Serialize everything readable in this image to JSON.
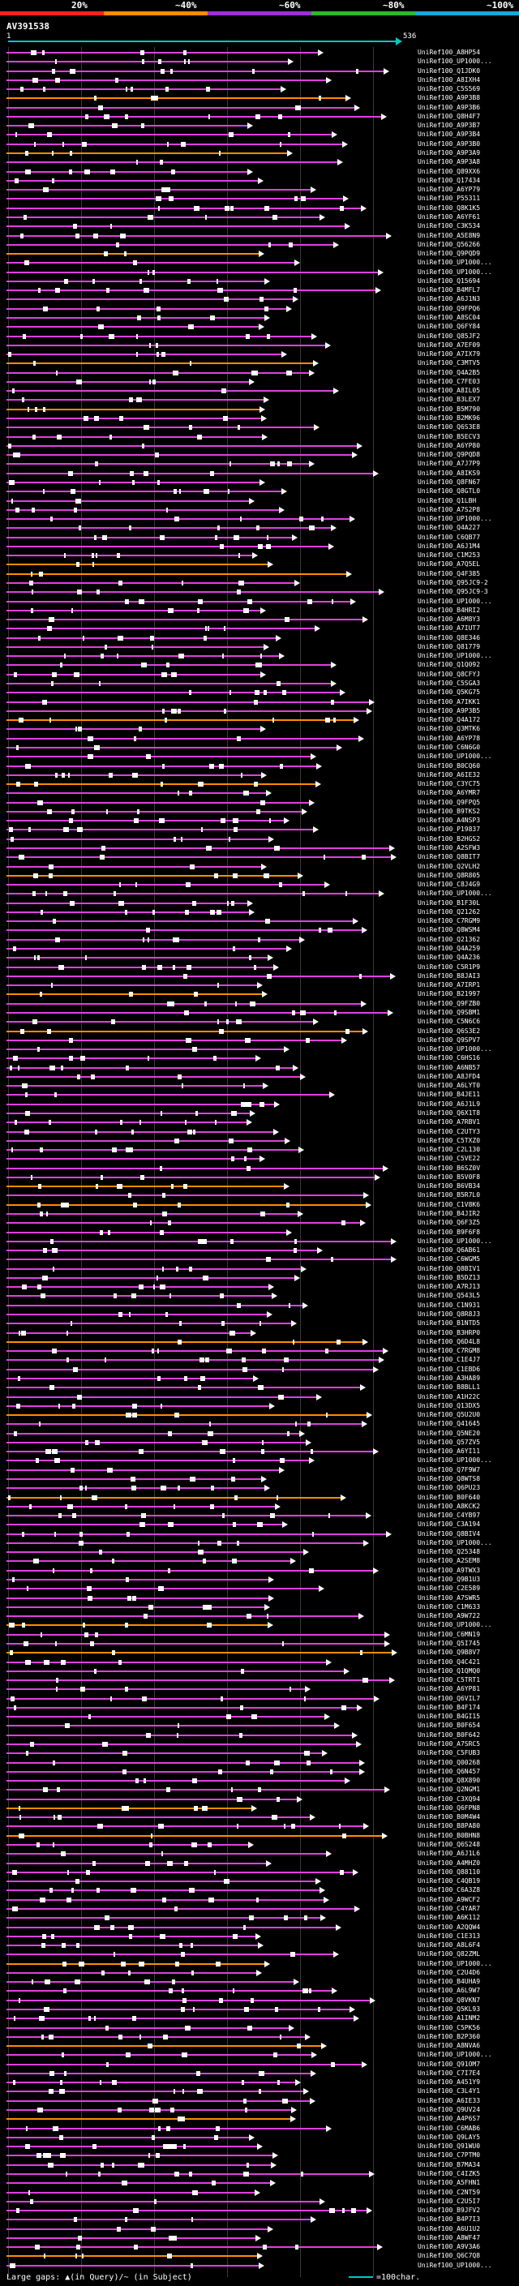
{
  "scale": {
    "labels": [
      "20%",
      "~40%",
      "~60%",
      "~80%",
      "~100%"
    ],
    "colors": [
      "#ff2020",
      "#ff8c00",
      "#9b30d8",
      "#2db82d",
      "#1aa7d9"
    ]
  },
  "query": {
    "name": "AV391538",
    "start": "1",
    "end": "536",
    "color": "#00c8c8"
  },
  "line_colors": {
    "magenta": "#e040e0",
    "orange": "#ff8c00"
  },
  "hits": [
    "UniRef100_A8HP54",
    "UniRef100_UP1000...",
    "UniRef100_Q1JDK0",
    "UniRef100_A8IXH4",
    "UniRef100_C5S569",
    "UniRef100_A9P3B8",
    "UniRef100_A9P3B6",
    "UniRef100_Q8H4F7",
    "UniRef100_A9P3B7",
    "UniRef100_A9P3B4",
    "UniRef100_A9P3B0",
    "UniRef100_A9P3A9",
    "UniRef100_A9P3A8",
    "UniRef100_Q89XX6",
    "UniRef100_Q17434",
    "UniRef100_A6YP79",
    "UniRef100_P55311",
    "UniRef100_Q8K1K5",
    "UniRef100_A6YF61",
    "UniRef100_C3K534",
    "UniRef100_A5E8N9",
    "UniRef100_Q56266",
    "UniRef100_Q9PQD9",
    "UniRef100_UP1000...",
    "UniRef100_UP1000...",
    "UniRef100_Q15694",
    "UniRef100_B4MFL7",
    "UniRef100_A6J1N3",
    "UniRef100_Q9FPQ6",
    "UniRef100_A8SC04",
    "UniRef100_Q6FY84",
    "UniRef100_Q85JF2",
    "UniRef100_A7EF09",
    "UniRef100_A7IX79",
    "UniRef100_C3MTV5",
    "UniRef100_Q4A2B5",
    "UniRef100_C7FE03",
    "UniRef100_A8IL05",
    "UniRef100_B3LEX7",
    "UniRef100_B5M790",
    "UniRef100_B2MK96",
    "UniRef100_Q6S3E8",
    "UniRef100_B5ECV3",
    "UniRef100_A6YP80",
    "UniRef100_Q9PQD8",
    "UniRef100_A7J7P9",
    "UniRef100_A8IKS9",
    "UniRef100_Q8FN67",
    "UniRef100_Q8GTL0",
    "UniRef100_Q1LBH",
    "UniRef100_A7S2P8",
    "UniRef100_UP1000...",
    "UniRef100_Q4A227",
    "UniRef100_C6QB77",
    "UniRef100_A6J1M4",
    "UniRef100_C1M253",
    "UniRef100_A7Q5EL",
    "UniRef100_Q4F385",
    "UniRef100_Q95JC9-2",
    "UniRef100_Q95JC9-3",
    "UniRef100_UP1000...",
    "UniRef100_B4HRI2",
    "UniRef100_A6M8Y3",
    "UniRef100_A7IUT7",
    "UniRef100_Q8E346",
    "UniRef100_Q81779",
    "UniRef100_UP1000...",
    "UniRef100_Q1Q092",
    "UniRef100_Q8CFYJ",
    "UniRef100_C5SGA3",
    "UniRef100_Q5KG75",
    "UniRef100_A7IKK1",
    "UniRef100_A9P3B5",
    "UniRef100_Q4A172",
    "UniRef100_Q3MTK6",
    "UniRef100_A6YP78",
    "UniRef100_C6N6G0",
    "UniRef100_UP1000...",
    "UniRef100_B0CQ60",
    "UniRef100_A6IE32",
    "UniRef100_C3YC75",
    "UniRef100_A6YMR7",
    "UniRef100_Q9FPQ5",
    "UniRef100_B9TKS2",
    "UniRef100_A4NSP3",
    "UniRef100_P19837",
    "UniRef100_B2HGS2",
    "UniRef100_A2SFW3",
    "UniRef100_Q8BIT7",
    "UniRef100_Q2VLH2",
    "UniRef100_Q8R805",
    "UniRef100_C8J4G9",
    "UniRef100_UP1000...",
    "UniRef100_B1F30L",
    "UniRef100_Q21262",
    "UniRef100_C7RGM9",
    "UniRef100_Q8WSM4",
    "UniRef100_Q21362",
    "UniRef100_Q4A259",
    "UniRef100_Q4A236",
    "UniRef100_C5R1P9",
    "UniRef100_B8JAI3",
    "UniRef100_A7IRP1",
    "UniRef100_B21997",
    "UniRef100_Q9FZB0",
    "UniRef100_Q9SBM1",
    "UniRef100_C5N6C6",
    "UniRef100_Q6S3E2",
    "UniRef100_Q9SPV7",
    "UniRef100_UP1000...",
    "UniRef100_C6HS16",
    "UniRef100_A6NB57",
    "UniRef100_A8JFD4",
    "UniRef100_A6LYT0",
    "UniRef100_B4JE11",
    "UniRef100_A6J1L9",
    "UniRef100_Q6X1T8",
    "UniRef100_A7RBV1",
    "UniRef100_C2UTY3",
    "UniRef100_C5TXZ0",
    "UniRef100_C2L130",
    "UniRef100_C5VE22",
    "UniRef100_B6SZ0V",
    "UniRef100_B5V0F8",
    "UniRef100_B6VB34",
    "UniRef100_B5R7L0",
    "UniRef100_C1V8K6",
    "UniRef100_B4JIR2",
    "UniRef100_Q6F3Z5",
    "UniRef100_B9F6F8",
    "UniRef100_UP1000...",
    "UniRef100_Q6AB61",
    "UniRef100_C6WGM5",
    "UniRef100_Q8BIV1",
    "UniRef100_B5DZ13",
    "UniRef100_A7RJ13",
    "UniRef100_Q543L5",
    "UniRef100_C1N931",
    "UniRef100_Q8R8J3",
    "UniRef100_B1NTD5",
    "UniRef100_B3HRP0",
    "UniRef100_Q6D4L8",
    "UniRef100_C7RGM8",
    "UniRef100_C1E4J7",
    "UniRef100_C1EBD6",
    "UniRef100_A3HA89",
    "UniRef100_B8BLL1",
    "UniRef100_A1H22C",
    "UniRef100_Q13DX5",
    "UniRef100_Q5U2U0",
    "UniRef100_Q41645",
    "UniRef100_Q5NE20",
    "UniRef100_Q57ZV5",
    "UniRef100_A6YI11",
    "UniRef100_UP1000...",
    "UniRef100_Q7F9W7",
    "UniRef100_Q8WTS8",
    "UniRef100_Q6PU23",
    "UniRef100_B0F640",
    "UniRef100_A8KCK2",
    "UniRef100_C4YB97",
    "UniRef100_C3A194",
    "UniRef100_Q8BIV4",
    "UniRef100_UP1000...",
    "UniRef100_Q25348",
    "UniRef100_A2SEM8",
    "UniRef100_A9TWX3",
    "UniRef100_Q9B1U3",
    "UniRef100_C2E589",
    "UniRef100_A7SWR5",
    "UniRef100_C1M633",
    "UniRef100_A9W722",
    "UniRef100_UP1000...",
    "UniRef100_C6MN19",
    "UniRef100_Q5I745",
    "UniRef100_Q9B8V7",
    "UniRef100_Q4C421",
    "UniRef100_Q1QMQ0",
    "UniRef100_C5TRT1",
    "UniRef100_A6YP81",
    "UniRef100_Q6VIL7",
    "UniRef100_B4F174",
    "UniRef100_B4GI15",
    "UniRef100_B0F654",
    "UniRef100_B0F642",
    "UniRef100_A7SRC5",
    "UniRef100_C5FUB3",
    "UniRef100_Q00268",
    "UniRef100_Q6N457",
    "UniRef100_Q8X890",
    "UniRef100_Q2NGM1",
    "UniRef100_C3XQ94",
    "UniRef100_Q6FPN8",
    "UniRef100_B0M4W4",
    "UniRef100_B8PA80",
    "UniRef100_B0BHN8",
    "UniRef100_Q6S248",
    "UniRef100_A6J1L6",
    "UniRef100_A4MHZ0",
    "UniRef100_Q88110",
    "UniRef100_C4QB19",
    "UniRef100_C6A3Z8",
    "UniRef100_A9WCF2",
    "UniRef100_C4YAR7",
    "UniRef100_A6K112",
    "UniRef100_A2QQW4",
    "UniRef100_C1E313",
    "UniRef100_A8L6F4",
    "UniRef100_Q82ZML",
    "UniRef100_UP1000...",
    "UniRef100_C2U4D6",
    "UniRef100_B4UHA9",
    "UniRef100_A6L9W7",
    "UniRef100_Q8VKN7",
    "UniRef100_Q5KL93",
    "UniRef100_A1INM2",
    "UniRef100_C5PK56",
    "UniRef100_B2P360",
    "UniRef100_A8NVA6",
    "UniRef100_UP1000...",
    "UniRef100_Q91OM7",
    "UniRef100_C7I7E4",
    "UniRef100_A451Y9",
    "UniRef100_C3L4Y1",
    "UniRef100_A6IE33",
    "UniRef100_Q9UV24",
    "UniRef100_A4P6S7",
    "UniRef100_C6MAB6",
    "UniRef100_Q9LAY5",
    "UniRef100_Q91WU0",
    "UniRef100_C7PTM0",
    "UniRef100_B7MA34",
    "UniRef100_C4IZK5",
    "UniRef100_A5FHN1",
    "UniRef100_C2NT59",
    "UniRef100_C2U5I7",
    "UniRef100_B9JFV2",
    "UniRef100_B4P7I3",
    "UniRef100_A6U1U2",
    "UniRef100_A8WF47",
    "UniRef100_A9V3A6",
    "UniRef100_Q6C7Q8",
    "UniRef100_UP1000..."
  ],
  "legend": {
    "text": "Large gaps: ▲(in Query)/~ (in Subject)",
    "scale": "=100char."
  }
}
